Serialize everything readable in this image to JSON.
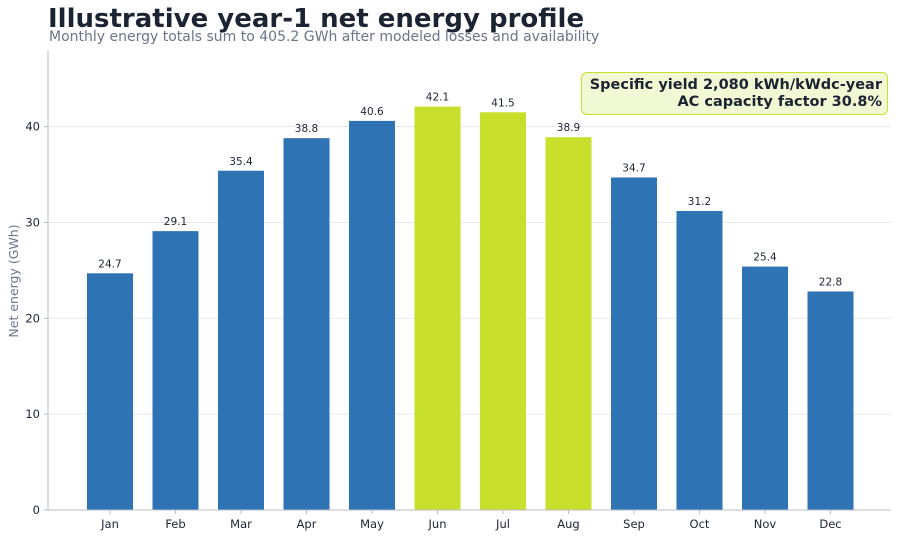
{
  "chart_data": {
    "type": "bar",
    "title": "Illustrative year-1 net energy profile",
    "subtitle": "Monthly energy totals sum to 405.2 GWh after modeled losses and availability",
    "xlabel": "",
    "ylabel": "Net energy (GWh)",
    "ylim": [
      0,
      48
    ],
    "yticks": [
      0,
      10,
      20,
      30,
      40
    ],
    "grid": true,
    "categories": [
      "Jan",
      "Feb",
      "Mar",
      "Apr",
      "May",
      "Jun",
      "Jul",
      "Aug",
      "Sep",
      "Oct",
      "Nov",
      "Dec"
    ],
    "values": [
      24.7,
      29.1,
      35.4,
      38.8,
      40.6,
      42.1,
      41.5,
      38.9,
      34.7,
      31.2,
      25.4,
      22.8
    ],
    "highlight_months": [
      "Jun",
      "Jul",
      "Aug"
    ],
    "colors": {
      "base": "#2e73b4",
      "highlight": "#c8df2c",
      "grid": "#e6e8ee",
      "axis": "#b8bec9"
    },
    "annotation": {
      "line1": "Specific yield 2,080 kWh/kWdc-year",
      "line2": "AC capacity factor 30.8%"
    }
  }
}
